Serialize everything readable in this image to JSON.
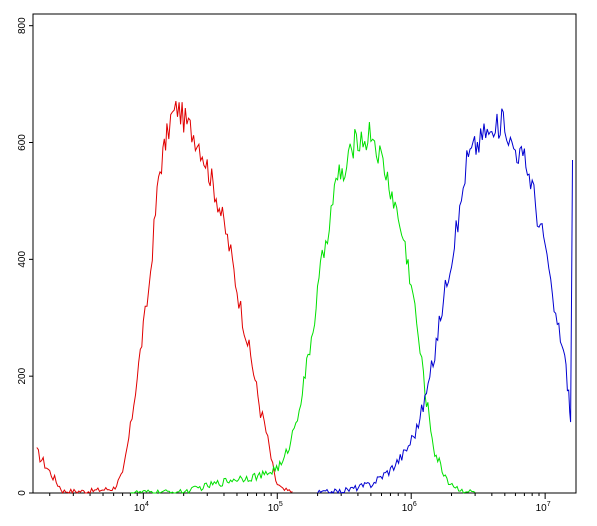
{
  "chart_data": {
    "type": "line",
    "title": "",
    "xlabel": "",
    "ylabel": "",
    "x_scale": "log",
    "xlim": [
      1500,
      17000000
    ],
    "ylim": [
      0,
      820
    ],
    "grid": false,
    "y_ticks": [
      0,
      200,
      400,
      600,
      800
    ],
    "y_tick_labels": [
      "0",
      "200",
      "400",
      "600",
      "800"
    ],
    "x_ticks": [
      {
        "value": 10000,
        "base": "10",
        "exp": "4"
      },
      {
        "value": 100000,
        "base": "10",
        "exp": "5"
      },
      {
        "value": 1000000,
        "base": "10",
        "exp": "6"
      },
      {
        "value": 10000000,
        "base": "10",
        "exp": "7"
      }
    ],
    "series": [
      {
        "color": "#e00000",
        "x": [
          1600,
          2500,
          4000,
          6000,
          7000,
          8000,
          9000,
          10000,
          11000,
          12000,
          13000,
          14000,
          15000,
          16000,
          17000,
          18000,
          20000,
          23000,
          26000,
          30000,
          35000,
          40000,
          45000,
          50000,
          55000,
          60000,
          65000,
          70000,
          75000,
          80000,
          85000,
          90000,
          95000,
          100000,
          110000,
          130000
        ],
        "y": [
          70,
          3,
          3,
          8,
          30,
          110,
          200,
          280,
          350,
          450,
          540,
          580,
          610,
          640,
          650,
          660,
          640,
          620,
          600,
          560,
          510,
          460,
          410,
          350,
          300,
          260,
          220,
          180,
          140,
          120,
          90,
          60,
          30,
          15,
          5,
          2
        ]
      },
      {
        "color": "#00e000",
        "x": [
          8000,
          20000,
          50000,
          80000,
          110000,
          130000,
          150000,
          170000,
          190000,
          210000,
          230000,
          260000,
          290000,
          320000,
          360000,
          400000,
          450000,
          500000,
          550000,
          600000,
          700000,
          800000,
          900000,
          1000000,
          1100000,
          1200000,
          1300000,
          1400000,
          1500000,
          1700000,
          1900000,
          2200000,
          2600000,
          3000000
        ],
        "y": [
          1,
          2,
          25,
          30,
          50,
          100,
          160,
          230,
          300,
          380,
          430,
          500,
          550,
          540,
          590,
          610,
          600,
          620,
          590,
          570,
          520,
          470,
          420,
          360,
          290,
          220,
          160,
          110,
          70,
          40,
          20,
          8,
          3,
          1
        ]
      },
      {
        "color": "#0000d0",
        "x": [
          200000,
          300000,
          500000,
          700000,
          900000,
          1100000,
          1300000,
          1500000,
          1700000,
          1900000,
          2100000,
          2300000,
          2600000,
          2900000,
          3200000,
          3600000,
          4000000,
          4500000,
          5000000,
          5500000,
          6000000,
          7000000,
          8000000,
          9000000,
          10000000,
          11000000,
          12000000,
          13000000,
          14000000,
          15000000,
          15500000,
          16000000
        ],
        "y": [
          1,
          3,
          15,
          40,
          70,
          110,
          170,
          240,
          320,
          380,
          430,
          480,
          570,
          590,
          600,
          620,
          610,
          630,
          640,
          600,
          590,
          570,
          530,
          460,
          430,
          350,
          300,
          270,
          230,
          170,
          120,
          570
        ]
      }
    ]
  }
}
